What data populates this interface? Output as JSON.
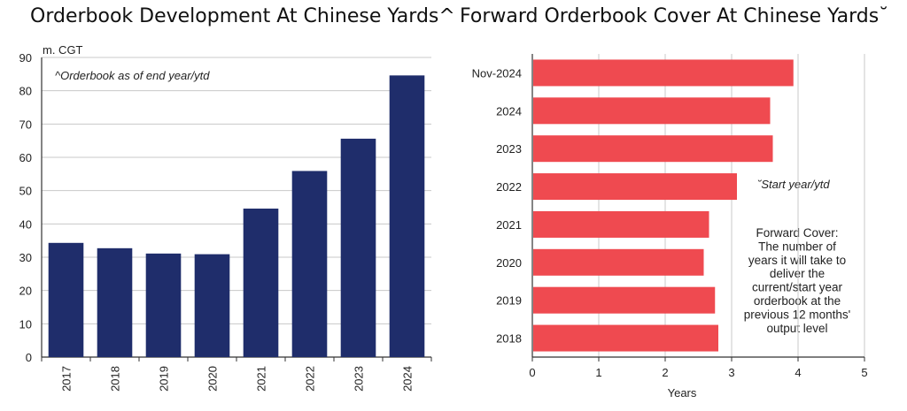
{
  "left": {
    "title": "Orderbook Development At Chinese Yards^",
    "unit_label": "m. CGT",
    "note": "^Orderbook as of end year/ytd"
  },
  "right": {
    "title": "Forward Orderbook Cover At Chinese Yards˘",
    "xlabel": "Years",
    "note": "˘Start year/ytd",
    "annotation": [
      "Forward Cover:",
      "The number of",
      "years it will take to",
      "deliver the",
      "current/start year",
      "orderbook at the",
      "previous 12 months'",
      "output level"
    ]
  },
  "colors": {
    "left_bar": "#1f2d6b",
    "right_bar": "#ef4a50",
    "grid": "#c8c8c8",
    "axis": "#333333"
  },
  "chart_data": [
    {
      "type": "bar",
      "title": "Orderbook Development At Chinese Yards^",
      "ylabel": "m. CGT",
      "categories": [
        "2017",
        "2018",
        "2019",
        "2020",
        "2021",
        "2022",
        "2023",
        "2024"
      ],
      "values": [
        34.3,
        32.7,
        31.1,
        30.9,
        44.6,
        55.9,
        65.6,
        84.6
      ],
      "ylim": [
        0,
        90
      ],
      "yticks": [
        0,
        10,
        20,
        30,
        40,
        50,
        60,
        70,
        80,
        90
      ],
      "grid": true
    },
    {
      "type": "bar",
      "orientation": "horizontal",
      "title": "Forward Orderbook Cover At Chinese Yards˘",
      "xlabel": "Years",
      "categories": [
        "Nov-2024",
        "2024",
        "2023",
        "2022",
        "2021",
        "2020",
        "2019",
        "2018"
      ],
      "values": [
        3.93,
        3.58,
        3.62,
        3.08,
        2.66,
        2.58,
        2.75,
        2.8
      ],
      "xlim": [
        0,
        5
      ],
      "xticks": [
        0,
        1,
        2,
        3,
        4,
        5
      ],
      "grid": true
    }
  ]
}
